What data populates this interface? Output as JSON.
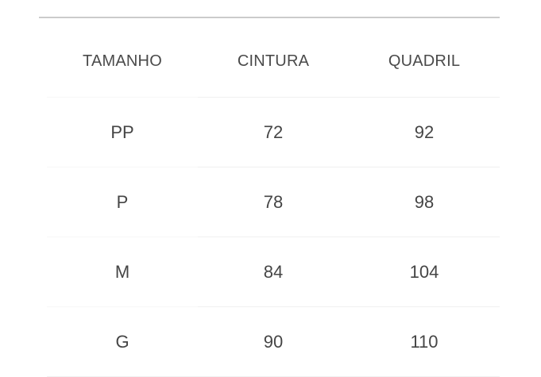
{
  "table": {
    "headers": [
      "TAMANHO",
      "CINTURA",
      "QUADRIL"
    ],
    "rows": [
      [
        "PP",
        "72",
        "92"
      ],
      [
        "P",
        "78",
        "98"
      ],
      [
        "M",
        "84",
        "104"
      ],
      [
        "G",
        "90",
        "110"
      ]
    ]
  }
}
